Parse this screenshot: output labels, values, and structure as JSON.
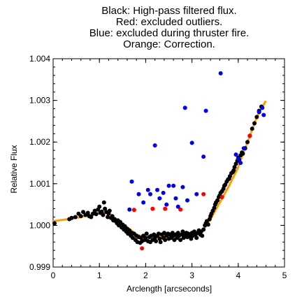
{
  "chart_data": {
    "type": "scatter",
    "title_lines": [
      "Black: High-pass filtered flux.",
      "Red: excluded outliers.",
      "Blue: excluded during thruster fire.",
      "Orange: Correction."
    ],
    "xlabel": "Arclength [arcseconds]",
    "ylabel": "Relative Flux",
    "xlim": [
      0,
      5
    ],
    "ylim": [
      0.999,
      1.004
    ],
    "x_ticks": [
      0,
      1,
      2,
      3,
      4,
      5
    ],
    "y_ticks": [
      0.999,
      1.0,
      1.001,
      1.002,
      1.003,
      1.004
    ],
    "y_tick_labels": [
      "0.999",
      "1.000",
      "1.001",
      "1.002",
      "1.003",
      "1.004"
    ],
    "grid": false,
    "colors": {
      "black": "#000000",
      "red": "#ff0000",
      "blue": "#0000ee",
      "orange": "#ff9900"
    },
    "series": [
      {
        "color": "black",
        "points": [
          [
            0.03,
            1.00005
          ],
          [
            0.35,
            1.00015
          ],
          [
            0.4,
            1.00018
          ],
          [
            0.48,
            1.0002
          ],
          [
            0.55,
            1.00028
          ],
          [
            0.6,
            1.00022
          ],
          [
            0.65,
            1.00032
          ],
          [
            0.7,
            1.00025
          ],
          [
            0.75,
            1.0003
          ],
          [
            0.78,
            1.00022
          ],
          [
            0.82,
            1.0002
          ],
          [
            0.86,
            1.00028
          ],
          [
            0.9,
            1.00035
          ],
          [
            0.93,
            1.00027
          ],
          [
            0.97,
            1.00038
          ],
          [
            1.0,
            1.00045
          ],
          [
            1.02,
            1.0003
          ],
          [
            1.05,
            1.00033
          ],
          [
            1.08,
            1.00025
          ],
          [
            1.1,
            1.00055
          ],
          [
            1.12,
            1.0004
          ],
          [
            1.15,
            1.00032
          ],
          [
            1.18,
            1.0002
          ],
          [
            1.2,
            1.00028
          ],
          [
            1.22,
            1.00035
          ],
          [
            1.25,
            1.00018
          ],
          [
            1.28,
            1.00022
          ],
          [
            1.3,
            1.00012
          ],
          [
            1.33,
            1.00015
          ],
          [
            1.35,
            1.0001
          ],
          [
            1.38,
            1.00005
          ],
          [
            1.4,
            1.00012
          ],
          [
            1.42,
            1.0
          ],
          [
            1.45,
            1.00008
          ],
          [
            1.48,
            0.99995
          ],
          [
            1.5,
            1.00002
          ],
          [
            1.53,
            0.9999
          ],
          [
            1.55,
            0.99998
          ],
          [
            1.58,
            0.99985
          ],
          [
            1.6,
            0.99992
          ],
          [
            1.62,
            0.9998
          ],
          [
            1.65,
            0.99988
          ],
          [
            1.68,
            0.99975
          ],
          [
            1.7,
            0.99982
          ],
          [
            1.72,
            0.9997
          ],
          [
            1.75,
            0.9998
          ],
          [
            1.78,
            0.99965
          ],
          [
            1.8,
            0.99975
          ],
          [
            1.82,
            0.9996
          ],
          [
            1.85,
            0.99972
          ],
          [
            1.88,
            0.99958
          ],
          [
            1.9,
            0.9997
          ],
          [
            1.92,
            0.99962
          ],
          [
            1.95,
            0.99975
          ],
          [
            1.98,
            0.99965
          ],
          [
            2.0,
            0.9997
          ],
          [
            2.02,
            0.9998
          ],
          [
            2.05,
            0.99962
          ],
          [
            2.08,
            0.99972
          ],
          [
            2.1,
            0.9996
          ],
          [
            2.12,
            0.99975
          ],
          [
            2.15,
            0.99965
          ],
          [
            2.18,
            0.99978
          ],
          [
            2.2,
            0.9997
          ],
          [
            2.22,
            0.99962
          ],
          [
            2.25,
            0.99975
          ],
          [
            2.28,
            0.9998
          ],
          [
            2.3,
            0.99968
          ],
          [
            2.32,
            0.9996
          ],
          [
            2.35,
            0.99978
          ],
          [
            2.38,
            0.9997
          ],
          [
            2.4,
            0.99982
          ],
          [
            2.42,
            0.99965
          ],
          [
            2.45,
            0.99975
          ],
          [
            2.48,
            0.9998
          ],
          [
            2.5,
            0.99968
          ],
          [
            2.52,
            0.99978
          ],
          [
            2.55,
            0.9997
          ],
          [
            2.58,
            0.99982
          ],
          [
            2.6,
            0.99975
          ],
          [
            2.62,
            0.99965
          ],
          [
            2.65,
            0.99978
          ],
          [
            2.68,
            0.9997
          ],
          [
            2.7,
            0.99982
          ],
          [
            2.72,
            0.99975
          ],
          [
            2.75,
            0.99965
          ],
          [
            2.78,
            0.99978
          ],
          [
            2.8,
            0.99985
          ],
          [
            2.82,
            0.9997
          ],
          [
            2.85,
            0.99978
          ],
          [
            2.88,
            0.99982
          ],
          [
            2.9,
            0.99972
          ],
          [
            2.92,
            0.9998
          ],
          [
            2.95,
            0.99975
          ],
          [
            2.98,
            0.99968
          ],
          [
            3.0,
            0.99982
          ],
          [
            3.02,
            0.99975
          ],
          [
            3.05,
            0.99985
          ],
          [
            3.08,
            0.99978
          ],
          [
            3.1,
            0.9997
          ],
          [
            3.12,
            0.99982
          ],
          [
            3.15,
            0.99988
          ],
          [
            3.18,
            0.99978
          ],
          [
            3.2,
            0.99985
          ],
          [
            3.22,
            0.99975
          ],
          [
            3.25,
            0.9999
          ],
          [
            3.28,
            1.0
          ],
          [
            3.3,
            1.00005
          ],
          [
            3.32,
            1.0001
          ],
          [
            3.35,
            1.00002
          ],
          [
            3.38,
            1.00015
          ],
          [
            3.4,
            1.00022
          ],
          [
            3.42,
            1.00028
          ],
          [
            3.45,
            1.00035
          ],
          [
            3.48,
            1.00042
          ],
          [
            3.5,
            1.0005
          ],
          [
            3.52,
            1.00055
          ],
          [
            3.55,
            1.0006
          ],
          [
            3.58,
            1.00068
          ],
          [
            3.6,
            1.00072
          ],
          [
            3.62,
            1.00078
          ],
          [
            3.65,
            1.00082
          ],
          [
            3.68,
            1.00088
          ],
          [
            3.7,
            1.00095
          ],
          [
            3.72,
            1.00098
          ],
          [
            3.75,
            1.00105
          ],
          [
            3.78,
            1.0011
          ],
          [
            3.8,
            1.00112
          ],
          [
            3.82,
            1.00118
          ],
          [
            3.85,
            1.00125
          ],
          [
            3.88,
            1.00128
          ],
          [
            3.9,
            1.00132
          ],
          [
            3.92,
            1.0014
          ],
          [
            3.95,
            1.00148
          ],
          [
            3.98,
            1.00155
          ],
          [
            4.0,
            1.00162
          ],
          [
            4.02,
            1.00158
          ],
          [
            4.05,
            1.00168
          ],
          [
            4.08,
            1.00175
          ],
          [
            4.1,
            1.00172
          ],
          [
            4.15,
            1.00185
          ],
          [
            4.2,
            1.002
          ],
          [
            4.25,
            1.00215
          ],
          [
            4.3,
            1.00232
          ],
          [
            4.35,
            1.00245
          ],
          [
            4.4,
            1.0026
          ],
          [
            4.45,
            1.00275
          ],
          [
            4.5,
            1.00285
          ]
        ]
      },
      {
        "color": "red",
        "points": [
          [
            1.75,
            1.00037
          ],
          [
            1.92,
            0.99945
          ],
          [
            2.15,
            1.0004
          ],
          [
            2.42,
            1.0004
          ],
          [
            2.75,
            1.00038
          ],
          [
            3.25,
            1.00075
          ],
          [
            3.65,
            1.00068
          ],
          [
            4.25,
            1.00215
          ]
        ]
      },
      {
        "color": "blue",
        "points": [
          [
            1.65,
            1.00038
          ],
          [
            1.7,
            1.00105
          ],
          [
            1.85,
            1.00075
          ],
          [
            1.95,
            1.00055
          ],
          [
            2.05,
            1.00085
          ],
          [
            2.1,
            1.00075
          ],
          [
            2.2,
            1.00192
          ],
          [
            2.25,
            1.00085
          ],
          [
            2.3,
            1.00065
          ],
          [
            2.38,
            1.00078
          ],
          [
            2.45,
            1.0005
          ],
          [
            2.5,
            1.00095
          ],
          [
            2.6,
            1.00095
          ],
          [
            2.65,
            1.00065
          ],
          [
            2.7,
            1.00045
          ],
          [
            2.8,
            1.00092
          ],
          [
            2.85,
            1.00282
          ],
          [
            2.9,
            1.0006
          ],
          [
            3.0,
            1.00198
          ],
          [
            3.1,
            1.00075
          ],
          [
            3.25,
            1.00165
          ],
          [
            3.3,
            1.00275
          ],
          [
            3.62,
            1.00365
          ],
          [
            3.95,
            1.0017
          ],
          [
            4.0,
            1.0016
          ],
          [
            4.05,
            1.0015
          ],
          [
            4.12,
            1.00185
          ],
          [
            4.45,
            1.00272
          ],
          [
            4.52,
            1.00282
          ],
          [
            4.55,
            1.00265
          ]
        ]
      }
    ],
    "orange_curve": [
      [
        0.0,
        1.0001
      ],
      [
        0.5,
        1.00018
      ],
      [
        1.0,
        1.0003
      ],
      [
        1.2,
        1.0003
      ],
      [
        1.4,
        1.0001
      ],
      [
        1.6,
        0.99995
      ],
      [
        1.8,
        0.99978
      ],
      [
        2.0,
        0.9997
      ],
      [
        2.2,
        0.99972
      ],
      [
        2.4,
        0.99975
      ],
      [
        2.6,
        0.99978
      ],
      [
        2.8,
        0.99978
      ],
      [
        3.0,
        0.99978
      ],
      [
        3.2,
        0.99982
      ],
      [
        3.4,
        1.00015
      ],
      [
        3.6,
        1.00055
      ],
      [
        3.8,
        1.00095
      ],
      [
        4.0,
        1.0014
      ],
      [
        4.2,
        1.002
      ],
      [
        4.4,
        1.0026
      ],
      [
        4.6,
        1.003
      ]
    ]
  }
}
